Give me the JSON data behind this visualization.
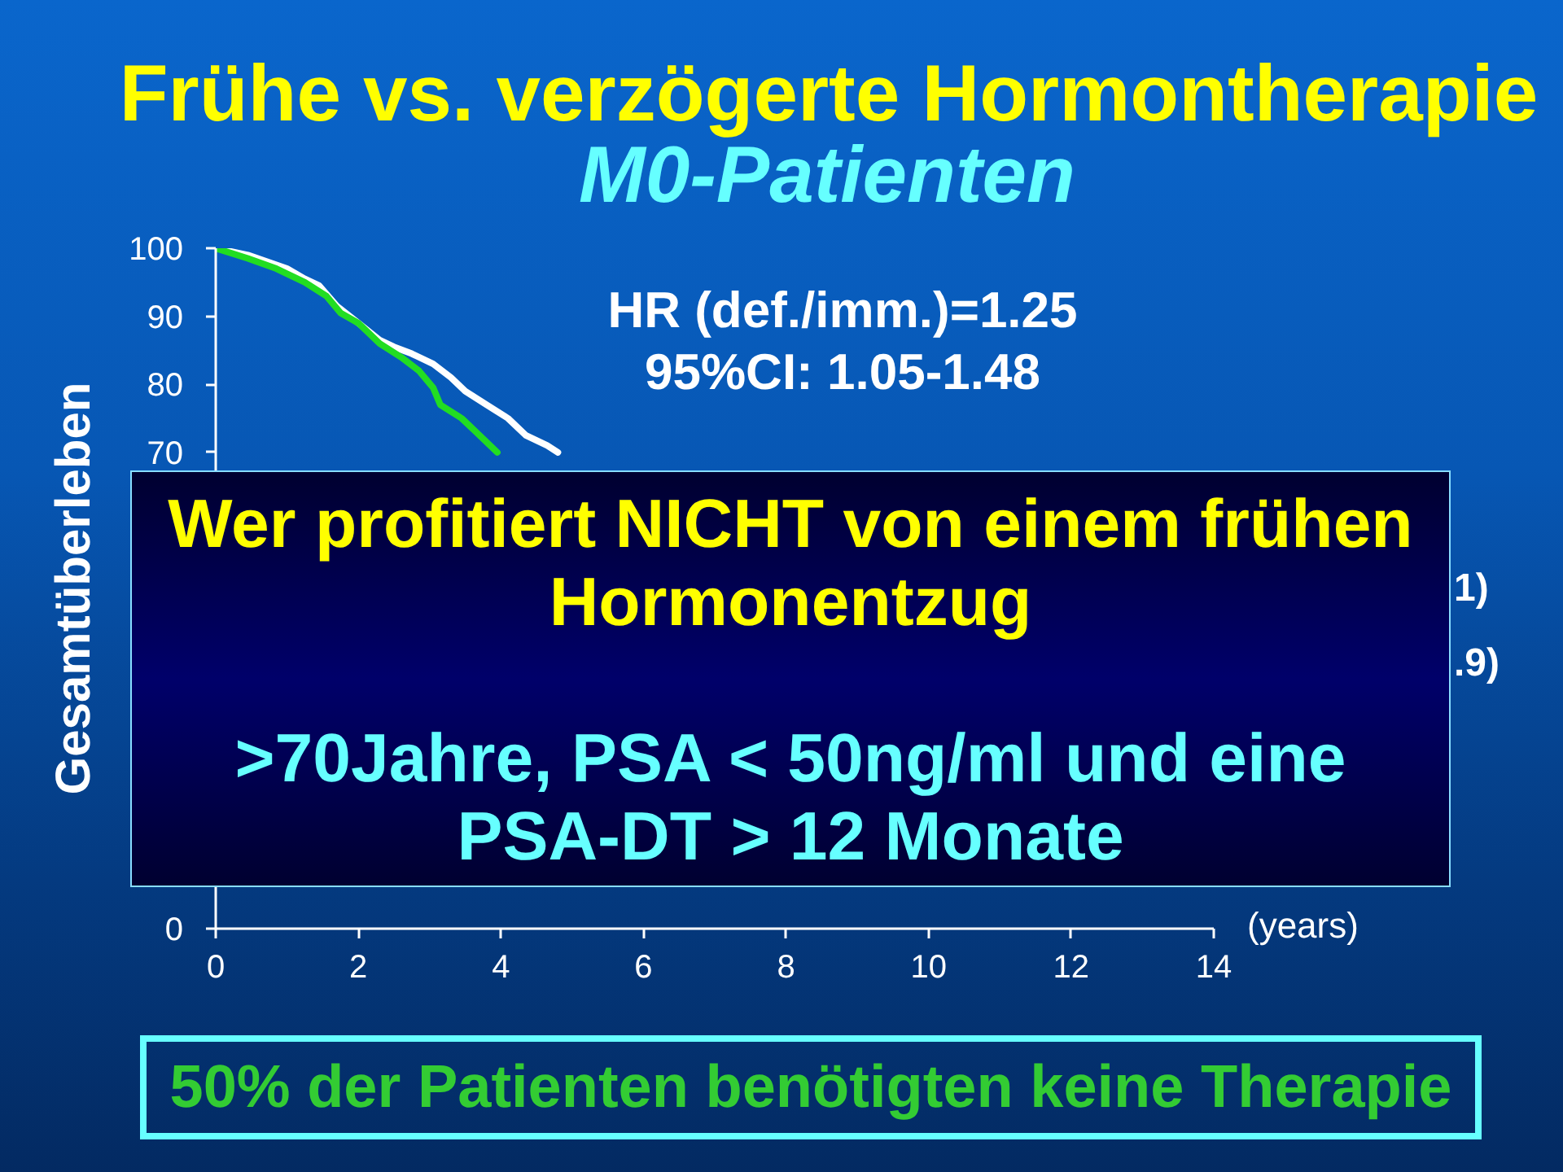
{
  "chart_data": {
    "type": "line",
    "title": "Frühe vs. verzögerte Hormontherapie",
    "subtitle": "M0-Patienten",
    "xlabel": "(years)",
    "ylabel": "Gesamtüberleben",
    "annotations": [
      "HR (def./imm.)=1.25",
      "95%CI: 1.05-1.48",
      "1)",
      ".9)",
      "Wer profitiert NICHT von einem frühen Hormonentzug",
      ">70Jahre, PSA < 50ng/ml und eine PSA-DT > 12 Monate",
      "50% der Patienten benötigten keine Therapie"
    ],
    "series": [
      {
        "color": "#ffffff",
        "x": [
          0,
          0.45,
          1.0,
          1.25,
          1.45,
          1.7,
          2.0,
          2.3,
          2.5,
          2.75,
          3.05,
          3.3,
          3.5,
          3.8,
          4.1,
          4.35,
          4.65,
          4.8
        ],
        "values": [
          100,
          99,
          97,
          95.5,
          94.5,
          91.5,
          89,
          86.5,
          85.5,
          84.5,
          83,
          81,
          79,
          77,
          75,
          72.5,
          71,
          70
        ]
      },
      {
        "color": "#22dd22",
        "x": [
          0,
          0.45,
          0.85,
          1.25,
          1.55,
          1.75,
          2.0,
          2.3,
          2.6,
          2.85,
          3.05,
          3.15,
          3.45,
          3.65,
          3.95
        ],
        "values": [
          100,
          98.5,
          97,
          95,
          93,
          90.5,
          89,
          86,
          84,
          82,
          79.5,
          77,
          75,
          73,
          70
        ]
      }
    ],
    "xlim": [
      0,
      14
    ],
    "xticks": [
      0,
      2,
      4,
      6,
      8,
      10,
      12,
      14
    ],
    "ylim": [
      0,
      100
    ],
    "yticks": [
      0,
      70,
      80,
      90,
      100
    ],
    "grid": false,
    "line_style": "solid"
  }
}
